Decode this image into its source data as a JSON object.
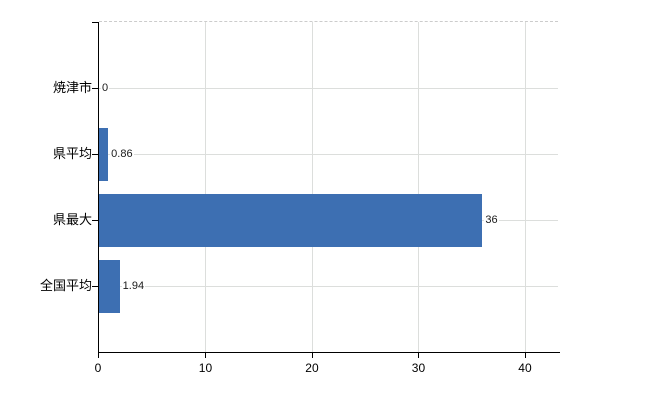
{
  "chart_data": {
    "type": "bar",
    "orientation": "horizontal",
    "title": "",
    "xlabel": "",
    "ylabel": "",
    "categories": [
      "焼津市",
      "県平均",
      "県最大",
      "全国平均"
    ],
    "values": [
      0,
      0.86,
      36,
      1.94
    ],
    "value_labels": [
      "0",
      "0.86",
      "36",
      "1.94"
    ],
    "x_ticks": [
      0,
      10,
      20,
      30,
      40
    ],
    "x_tick_labels": [
      "0",
      "10",
      "20",
      "30",
      "40"
    ],
    "xlim": [
      0,
      43.1
    ],
    "grid": true,
    "legend": false,
    "colors": {
      "bar": "#3d6fb2",
      "grid": "#dcdedc",
      "axis": "#000000",
      "top_border": "#cccccc",
      "background": "#ffffff",
      "text": "#000000"
    }
  }
}
